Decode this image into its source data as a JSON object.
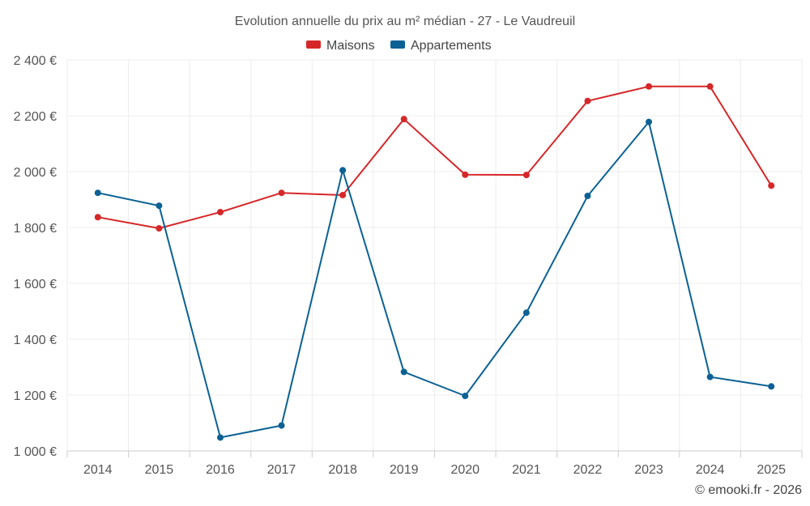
{
  "chart_data": {
    "type": "line",
    "title": "Evolution annuelle du prix au m² médian - 27 - Le Vaudreuil",
    "categories": [
      "2014",
      "2015",
      "2016",
      "2017",
      "2018",
      "2019",
      "2020",
      "2021",
      "2022",
      "2023",
      "2024",
      "2025"
    ],
    "series": [
      {
        "name": "Maisons",
        "color": "#d62728",
        "values": [
          1837,
          1797,
          1855,
          1924,
          1916,
          2188,
          1989,
          1988,
          2253,
          2305,
          2305,
          1950
        ]
      },
      {
        "name": "Appartements",
        "color": "#0b6194",
        "values": [
          1924,
          1878,
          1048,
          1091,
          2005,
          1283,
          1197,
          1495,
          1913,
          2178,
          1265,
          1231
        ]
      }
    ],
    "ylim": [
      1000,
      2400
    ],
    "yticks": [
      1000,
      1200,
      1400,
      1600,
      1800,
      2000,
      2200,
      2400
    ],
    "ytick_labels": [
      "1 000 €",
      "1 200 €",
      "1 400 €",
      "1 600 €",
      "1 800 €",
      "2 000 €",
      "2 200 €",
      "2 400 €"
    ],
    "grid": true,
    "legend_position": "top-center",
    "credit": "© emooki.fr - 2026"
  }
}
